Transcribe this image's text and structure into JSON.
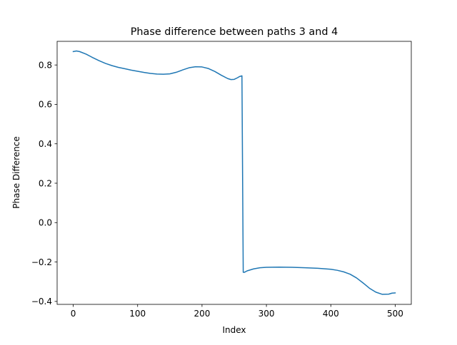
{
  "chart_data": {
    "type": "line",
    "title": "Phase difference between paths 3 and 4",
    "xlabel": "Index",
    "ylabel": "Phase Difference",
    "xlim": [
      -25,
      525
    ],
    "ylim": [
      -0.415,
      0.92
    ],
    "xticks": [
      0,
      100,
      200,
      300,
      400,
      500
    ],
    "xtick_labels": [
      "0",
      "100",
      "200",
      "300",
      "400",
      "500"
    ],
    "yticks": [
      -0.4,
      -0.2,
      0.0,
      0.2,
      0.4,
      0.6,
      0.8
    ],
    "ytick_labels": [
      "−0.4",
      "−0.2",
      "0.0",
      "0.2",
      "0.4",
      "0.6",
      "0.8"
    ],
    "grid": false,
    "legend": "none",
    "series": [
      {
        "color": "#1f77b4",
        "x": [
          0,
          5,
          10,
          20,
          30,
          40,
          50,
          60,
          70,
          80,
          90,
          100,
          110,
          120,
          130,
          140,
          150,
          160,
          170,
          180,
          190,
          200,
          210,
          220,
          230,
          240,
          245,
          250,
          255,
          258,
          262,
          263,
          264,
          266,
          270,
          280,
          290,
          300,
          320,
          340,
          360,
          380,
          400,
          410,
          420,
          430,
          440,
          450,
          460,
          470,
          480,
          490,
          495,
          500
        ],
        "y": [
          0.868,
          0.871,
          0.868,
          0.855,
          0.838,
          0.822,
          0.808,
          0.797,
          0.788,
          0.781,
          0.774,
          0.768,
          0.762,
          0.757,
          0.754,
          0.753,
          0.755,
          0.763,
          0.775,
          0.786,
          0.791,
          0.79,
          0.782,
          0.767,
          0.748,
          0.731,
          0.726,
          0.727,
          0.735,
          0.741,
          0.745,
          0.24,
          -0.252,
          -0.252,
          -0.245,
          -0.235,
          -0.229,
          -0.227,
          -0.226,
          -0.227,
          -0.229,
          -0.232,
          -0.237,
          -0.242,
          -0.25,
          -0.262,
          -0.281,
          -0.306,
          -0.333,
          -0.353,
          -0.364,
          -0.363,
          -0.358,
          -0.357
        ]
      }
    ]
  }
}
